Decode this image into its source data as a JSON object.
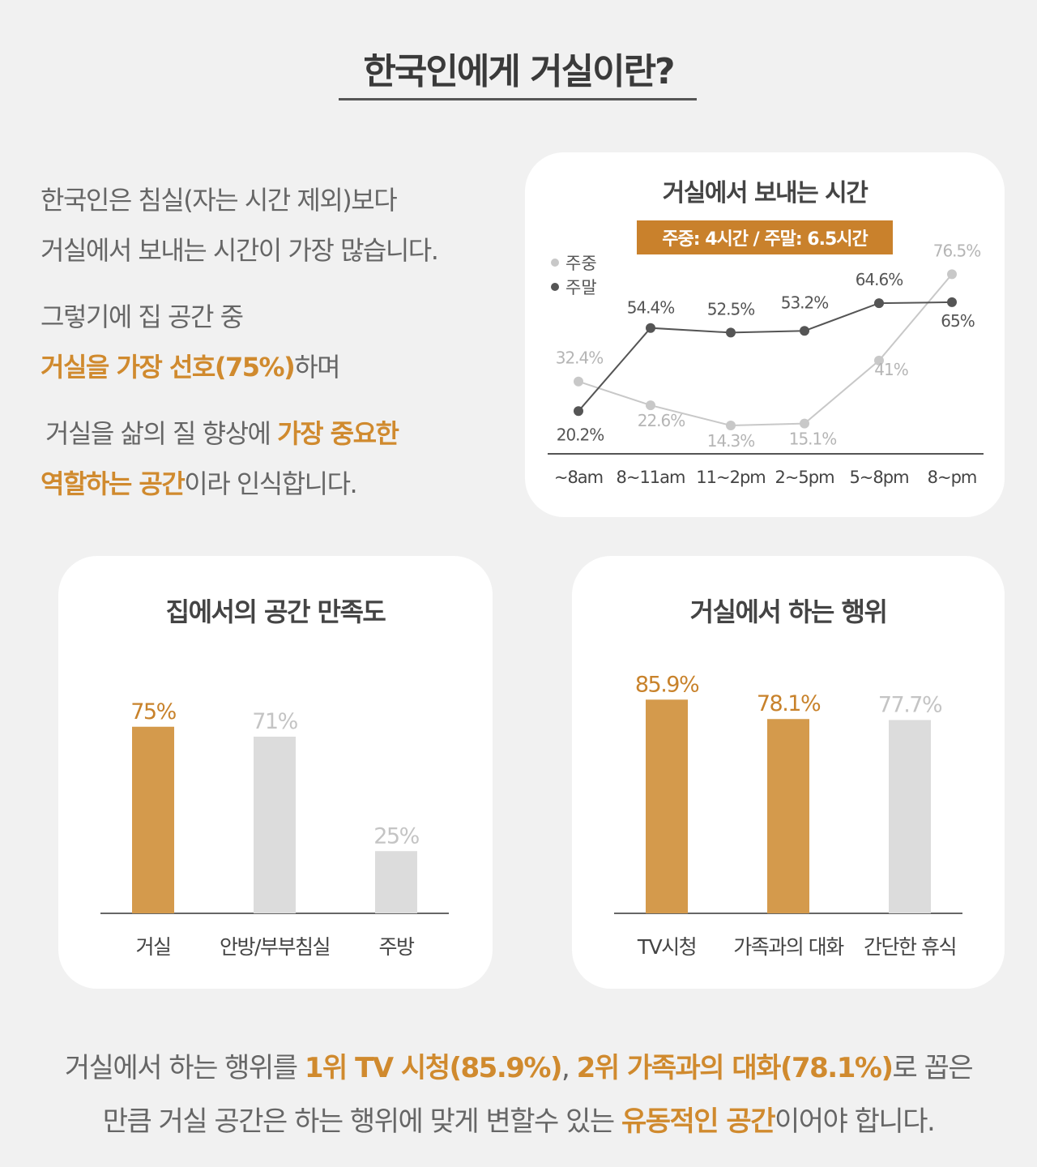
{
  "title": "한국인에게 거실이란?",
  "intro": {
    "l1": "한국인은 침실(자는 시간 제외)보다",
    "l2": "거실에서 보내는 시간이 가장 많습니다.",
    "l3": "그렇기에 집 공간 중",
    "l4_hl": "거실을 가장 선호(75%)",
    "l4_rest": "하며",
    "l5_pre": "거실을 삶의 질 향상에 ",
    "l5_hl": "가장 중요한",
    "l6_hl": "역할하는 공간",
    "l6_rest": "이라 인식합니다."
  },
  "colors": {
    "accent": "#d49a4c",
    "gray": "#dcdcdc",
    "weekday": "#c8c8c8",
    "weekend": "#555555"
  },
  "chart_data": [
    {
      "type": "line",
      "title": "거실에서 보내는 시간",
      "subtitle": "주중: 4시간 / 주말: 6.5시간",
      "categories": [
        "~8am",
        "8~11am",
        "11~2pm",
        "2~5pm",
        "5~8pm",
        "8~pm"
      ],
      "series": [
        {
          "name": "주중",
          "values": [
            32.4,
            22.6,
            14.3,
            15.1,
            41,
            76.5
          ],
          "labels": [
            "32.4%",
            "22.6%",
            "14.3%",
            "15.1%",
            "41%",
            "76.5%"
          ]
        },
        {
          "name": "주말",
          "values": [
            20.2,
            54.4,
            52.5,
            53.2,
            64.6,
            65
          ],
          "labels": [
            "20.2%",
            "54.4%",
            "52.5%",
            "53.2%",
            "64.6%",
            "65%"
          ]
        }
      ],
      "legend": "top-left"
    },
    {
      "type": "bar",
      "title": "집에서의 공간 만족도",
      "categories": [
        "거실",
        "안방/부부침실",
        "주방"
      ],
      "values": [
        75,
        71,
        25
      ],
      "labels": [
        "75%",
        "71%",
        "25%"
      ],
      "highlight": [
        true,
        false,
        false
      ]
    },
    {
      "type": "bar",
      "title": "거실에서 하는 행위",
      "categories": [
        "TV시청",
        "가족과의 대화",
        "간단한 휴식"
      ],
      "values": [
        85.9,
        78.1,
        77.7
      ],
      "labels": [
        "85.9%",
        "78.1%",
        "77.7%"
      ],
      "highlight": [
        true,
        true,
        false
      ]
    }
  ],
  "bottom": {
    "l1_a": "거실에서 하는 행위를 ",
    "l1_hl1": "1위 TV 시청(85.9%)",
    "l1_b": ", ",
    "l1_hl2": "2위 가족과의 대화(78.1%)",
    "l1_c": "로 꼽은",
    "l2_a": "만큼 거실 공간은 하는 행위에 맞게 변할수 있는 ",
    "l2_hl": "유동적인 공간",
    "l2_b": "이어야 합니다."
  }
}
